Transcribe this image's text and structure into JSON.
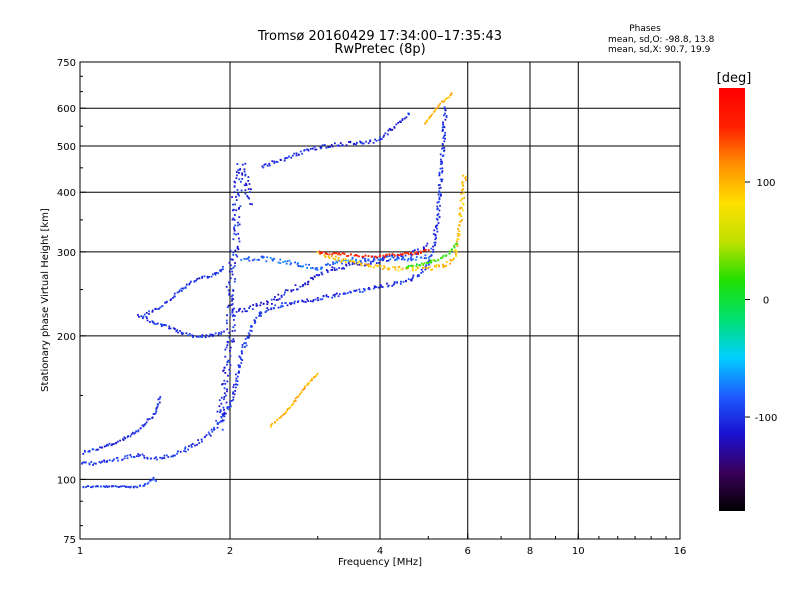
{
  "header": {
    "title": "Tromsø 20160429 17:34:00–17:35:43",
    "subtitle": "RwPretec (8p)"
  },
  "phase_box": {
    "title": "Phases",
    "line_o": "mean, sd,O: -98.8, 13.8",
    "line_x": "mean, sd,X:  90.7, 19.9"
  },
  "colorbar": {
    "label": "[deg]",
    "ticks": [
      {
        "value": 100,
        "label": "100"
      },
      {
        "value": 0,
        "label": "0"
      },
      {
        "value": -100,
        "label": "-100"
      }
    ],
    "range": [
      -180,
      180
    ],
    "stops": [
      "#000000",
      "#3a005a",
      "#1a10d0",
      "#1e5cff",
      "#00d0ff",
      "#00e070",
      "#20e000",
      "#c0e000",
      "#ffe000",
      "#ff9000",
      "#ff2000",
      "#ff0000"
    ]
  },
  "chart_data": {
    "type": "scatter",
    "xlabel": "Frequency [MHz]",
    "ylabel": "Stationary phase Virtual Height [km]",
    "xscale": "log",
    "yscale": "log",
    "xlim": [
      1,
      16
    ],
    "ylim": [
      75,
      750
    ],
    "x_ticks": [
      {
        "value": 1,
        "label": "1"
      },
      {
        "value": 2,
        "label": "2"
      },
      {
        "value": 4,
        "label": "4"
      },
      {
        "value": 6,
        "label": "6"
      },
      {
        "value": 8,
        "label": "8"
      },
      {
        "value": 10,
        "label": "10"
      },
      {
        "value": 16,
        "label": "16"
      }
    ],
    "x_gridlines": [
      2,
      4,
      6,
      8,
      10
    ],
    "y_ticks": [
      {
        "value": 75,
        "label": "75"
      },
      {
        "value": 100,
        "label": "100"
      },
      {
        "value": 200,
        "label": "200"
      },
      {
        "value": 300,
        "label": "300"
      },
      {
        "value": 400,
        "label": "400"
      },
      {
        "value": 500,
        "label": "500"
      },
      {
        "value": 600,
        "label": "600"
      },
      {
        "value": 750,
        "label": "750"
      }
    ],
    "y_gridlines": [
      100,
      200,
      300,
      400,
      500,
      600
    ],
    "grid": true,
    "traces": [
      {
        "points": [
          [
            1.0,
            97
          ],
          [
            1.1,
            97
          ],
          [
            1.2,
            97
          ],
          [
            1.3,
            97
          ],
          [
            1.35,
            98
          ],
          [
            1.4,
            101
          ],
          [
            1.42,
            99
          ]
        ],
        "phase": -95,
        "spread": 0.6
      },
      {
        "points": [
          [
            1.0,
            108
          ],
          [
            1.1,
            109
          ],
          [
            1.2,
            111
          ],
          [
            1.3,
            113
          ],
          [
            1.4,
            111
          ],
          [
            1.5,
            112
          ],
          [
            1.6,
            115
          ],
          [
            1.7,
            119
          ],
          [
            1.8,
            124
          ],
          [
            1.9,
            132
          ],
          [
            2.0,
            145
          ],
          [
            2.05,
            160
          ],
          [
            2.1,
            185
          ],
          [
            2.2,
            210
          ],
          [
            2.3,
            225
          ],
          [
            2.5,
            232
          ],
          [
            2.7,
            236
          ],
          [
            3.0,
            240
          ],
          [
            3.5,
            248
          ],
          [
            4.0,
            255
          ],
          [
            4.5,
            262
          ],
          [
            4.8,
            270
          ],
          [
            5.0,
            285
          ],
          [
            5.1,
            310
          ],
          [
            5.2,
            350
          ],
          [
            5.25,
            400
          ],
          [
            5.3,
            460
          ],
          [
            5.35,
            530
          ],
          [
            5.4,
            610
          ]
        ],
        "phase": -100,
        "spread": 1.2
      },
      {
        "points": [
          [
            1.0,
            114
          ],
          [
            1.1,
            117
          ],
          [
            1.2,
            121
          ],
          [
            1.3,
            127
          ],
          [
            1.35,
            132
          ],
          [
            1.4,
            137
          ],
          [
            1.42,
            142
          ],
          [
            1.45,
            150
          ]
        ],
        "phase": -105,
        "spread": 0.8
      },
      {
        "points": [
          [
            1.3,
            222
          ],
          [
            1.35,
            219
          ],
          [
            1.4,
            213
          ],
          [
            1.5,
            210
          ],
          [
            1.6,
            203
          ],
          [
            1.7,
            200
          ],
          [
            1.8,
            201
          ],
          [
            1.9,
            203
          ],
          [
            1.95,
            207
          ]
        ],
        "phase": -100,
        "spread": 0.9
      },
      {
        "points": [
          [
            1.35,
            222
          ],
          [
            1.45,
            232
          ],
          [
            1.55,
            245
          ],
          [
            1.65,
            258
          ],
          [
            1.75,
            266
          ],
          [
            1.85,
            270
          ],
          [
            1.95,
            280
          ]
        ],
        "phase": -100,
        "spread": 0.9
      },
      {
        "points": [
          [
            2.0,
            225
          ],
          [
            2.2,
            230
          ],
          [
            2.4,
            237
          ],
          [
            2.6,
            248
          ],
          [
            2.8,
            258
          ],
          [
            3.0,
            268
          ],
          [
            3.2,
            278
          ],
          [
            3.5,
            283
          ],
          [
            3.8,
            286
          ],
          [
            4.0,
            290
          ],
          [
            4.4,
            295
          ],
          [
            4.8,
            303
          ],
          [
            5.0,
            315
          ]
        ],
        "phase": -110,
        "spread": 1.6
      },
      {
        "points": [
          [
            2.1,
            290
          ],
          [
            2.3,
            292
          ],
          [
            2.5,
            288
          ],
          [
            2.8,
            283
          ],
          [
            3.0,
            278
          ],
          [
            3.2,
            285
          ],
          [
            3.5,
            290
          ],
          [
            4.0,
            293
          ],
          [
            4.5,
            291
          ],
          [
            5.0,
            295
          ]
        ],
        "phase": -80,
        "spread": 1.4
      },
      {
        "points": [
          [
            2.3,
            455
          ],
          [
            2.6,
            475
          ],
          [
            2.9,
            495
          ],
          [
            3.2,
            505
          ],
          [
            3.5,
            510
          ],
          [
            3.8,
            512
          ],
          [
            4.0,
            520
          ],
          [
            4.2,
            545
          ],
          [
            4.4,
            565
          ],
          [
            4.6,
            590
          ]
        ],
        "phase": -105,
        "spread": 1.2
      },
      {
        "points": [
          [
            3.0,
            300
          ],
          [
            3.3,
            290
          ],
          [
            3.6,
            285
          ],
          [
            4.0,
            280
          ],
          [
            4.5,
            277
          ],
          [
            5.0,
            278
          ],
          [
            5.4,
            283
          ],
          [
            5.6,
            290
          ],
          [
            5.7,
            310
          ],
          [
            5.75,
            330
          ],
          [
            5.8,
            370
          ],
          [
            5.85,
            400
          ],
          [
            5.9,
            440
          ]
        ],
        "phase": 95,
        "spread": 1.3
      },
      {
        "points": [
          [
            3.0,
            300
          ],
          [
            3.3,
            298
          ],
          [
            3.6,
            295
          ],
          [
            4.0,
            295
          ],
          [
            4.4,
            298
          ],
          [
            4.8,
            300
          ],
          [
            5.0,
            305
          ]
        ],
        "phase": 150,
        "spread": 0.8
      },
      {
        "points": [
          [
            4.9,
            560
          ],
          [
            5.1,
            590
          ],
          [
            5.3,
            620
          ],
          [
            5.5,
            640
          ],
          [
            5.6,
            650
          ]
        ],
        "phase": 100,
        "spread": 0.6
      },
      {
        "points": [
          [
            2.4,
            130
          ],
          [
            2.5,
            135
          ],
          [
            2.6,
            140
          ],
          [
            2.7,
            148
          ],
          [
            2.8,
            155
          ],
          [
            2.9,
            162
          ],
          [
            3.0,
            168
          ]
        ],
        "phase": 100,
        "spread": 0.5
      },
      {
        "points": [
          [
            1.9,
            130
          ],
          [
            1.95,
            160
          ],
          [
            2.0,
            200
          ],
          [
            2.0,
            260
          ],
          [
            2.05,
            330
          ],
          [
            2.05,
            400
          ],
          [
            2.1,
            460
          ],
          [
            2.15,
            420
          ],
          [
            2.2,
            380
          ]
        ],
        "phase": -105,
        "spread": 2.8
      },
      {
        "points": [
          [
            4.5,
            280
          ],
          [
            4.8,
            283
          ],
          [
            5.1,
            288
          ],
          [
            5.3,
            292
          ],
          [
            5.5,
            300
          ],
          [
            5.7,
            315
          ]
        ],
        "phase": 20,
        "spread": 0.7
      }
    ]
  }
}
